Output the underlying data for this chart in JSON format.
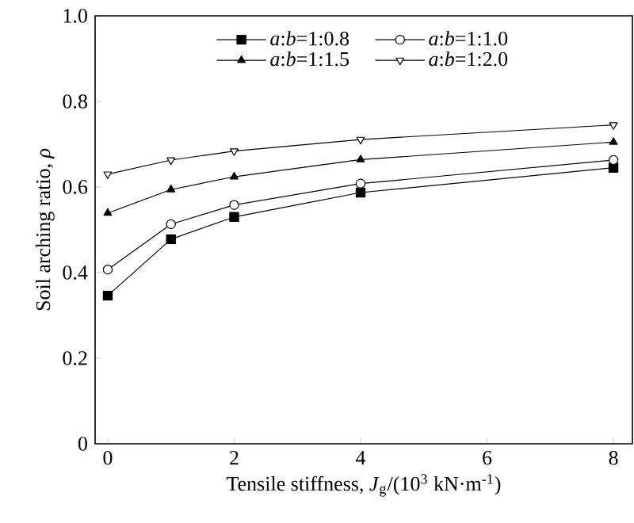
{
  "chart_data": {
    "type": "line",
    "xlabel": "Tensile stiffness, *J*$_{g}$/(10$^{3}$ kN·m$^{-1}$)",
    "ylabel": "Soil arching ratio, *ρ*",
    "x": [
      0,
      1,
      2,
      4,
      8
    ],
    "series": [
      {
        "name": "*a*:*b*=1:0.8",
        "color": "#000000",
        "marker": "square",
        "values": [
          0.346,
          0.478,
          0.53,
          0.587,
          0.645
        ]
      },
      {
        "name": "*a*:*b*=1:1.0",
        "color": "#000000",
        "marker": "circle",
        "values": [
          0.407,
          0.513,
          0.558,
          0.608,
          0.663
        ]
      },
      {
        "name": "*a*:*b*=1:1.5",
        "color": "#000000",
        "marker": "triangle",
        "values": [
          0.539,
          0.594,
          0.624,
          0.664,
          0.705
        ]
      },
      {
        "name": "*a*:*b*=1:2.0",
        "color": "#000000",
        "marker": "triangle-down",
        "values": [
          0.63,
          0.663,
          0.684,
          0.711,
          0.745
        ]
      }
    ],
    "xlim": [
      -0.2,
      8.3
    ],
    "ylim": [
      0,
      1.0
    ],
    "xticks": [
      0,
      2,
      4,
      6,
      8
    ],
    "yticks": [
      0,
      0.2,
      0.4,
      0.6,
      0.8,
      {
        "value": 1.0,
        "label": "1.0"
      }
    ],
    "legend": "top",
    "grid": false,
    "line_style": "solid"
  }
}
